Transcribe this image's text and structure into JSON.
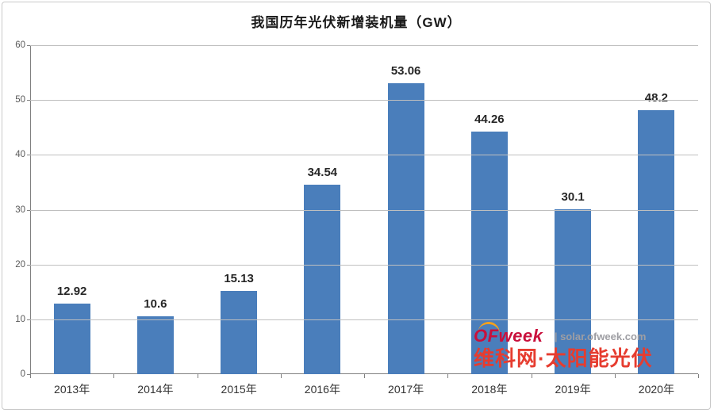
{
  "chart_data": {
    "type": "bar",
    "title": "我国历年光伏新增装机量（GW）",
    "categories": [
      "2013年",
      "2014年",
      "2015年",
      "2016年",
      "2017年",
      "2018年",
      "2019年",
      "2020年"
    ],
    "values": [
      12.92,
      10.6,
      15.13,
      34.54,
      53.06,
      44.26,
      30.1,
      48.2
    ],
    "xlabel": "",
    "ylabel": "",
    "ylim": [
      0,
      60
    ],
    "yticks": [
      0,
      10,
      20,
      30,
      40,
      50,
      60
    ],
    "grid": true,
    "legend_position": "none",
    "bar_color": "#4A7EBB",
    "gridline_color": "#BFBFBF",
    "axis_color": "#808080"
  },
  "watermark": {
    "brand": "OFweek",
    "site": "| solar.ofweek.com",
    "tagline": "维科网·太阳能光伏",
    "brand_color": "#C9103C",
    "swoosh_color": "#F5A21B",
    "site_color": "#9E9EA3",
    "tagline_color": "#E63C2F"
  }
}
